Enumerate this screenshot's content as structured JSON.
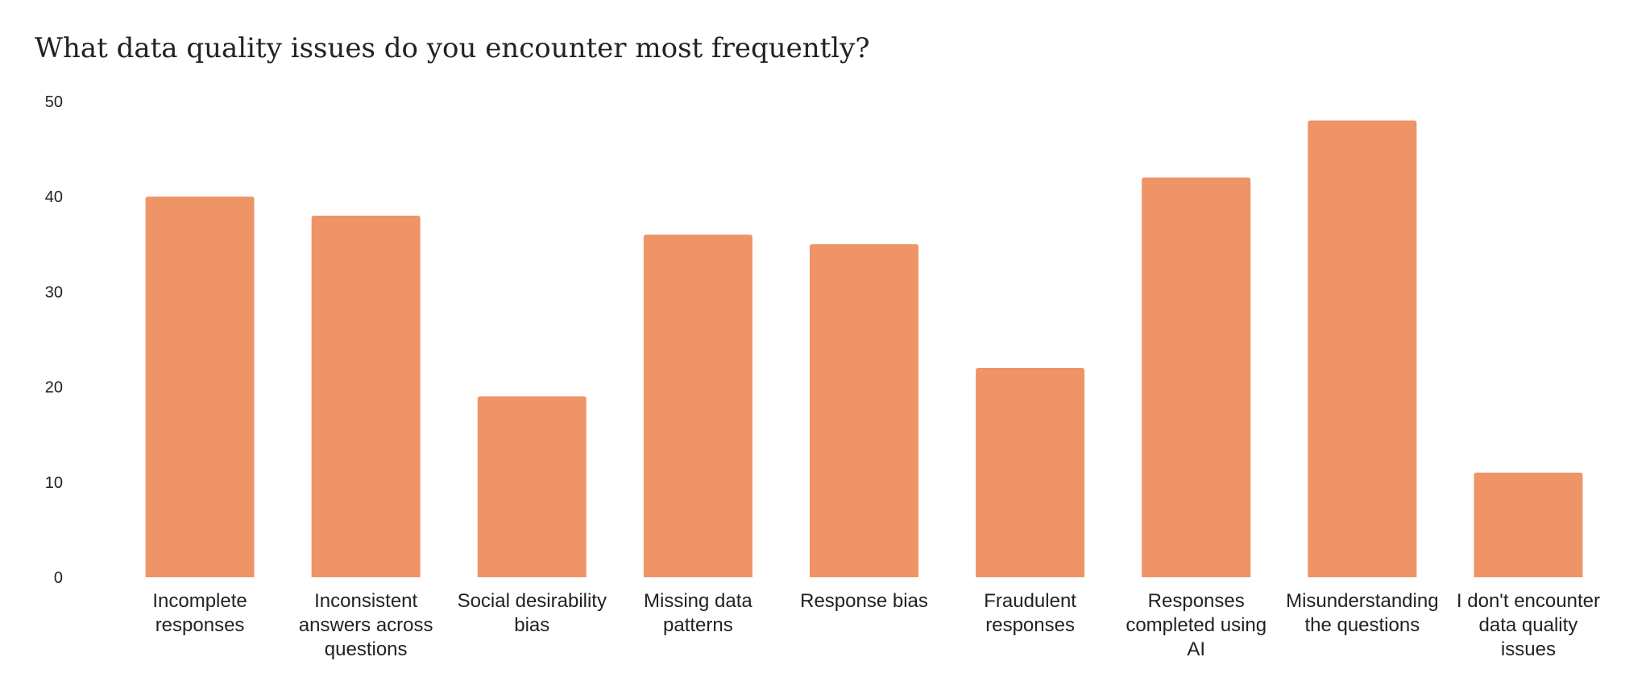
{
  "chart_data": {
    "type": "bar",
    "title": "What data quality issues do you encounter most frequently?",
    "xlabel": "",
    "ylabel": "",
    "ylim": [
      0,
      50
    ],
    "yticks": [
      0,
      10,
      20,
      30,
      40,
      50
    ],
    "grid": false,
    "bar_color": "#EF9467",
    "categories": [
      [
        "Incomplete",
        "responses"
      ],
      [
        "Inconsistent",
        "answers across",
        "questions"
      ],
      [
        "Social desirability",
        "bias"
      ],
      [
        "Missing data",
        "patterns"
      ],
      [
        "Response bias"
      ],
      [
        "Fraudulent",
        "responses"
      ],
      [
        "Responses",
        "completed using",
        "AI"
      ],
      [
        "Misunderstanding",
        "the questions"
      ],
      [
        "I don't encounter",
        "data quality",
        "issues"
      ]
    ],
    "values": [
      40,
      38,
      19,
      36,
      35,
      22,
      42,
      48,
      11
    ]
  }
}
